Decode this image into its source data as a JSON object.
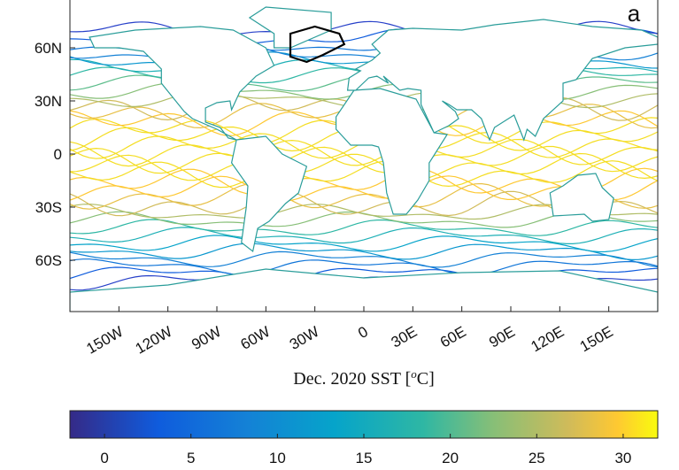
{
  "panel_label": "a",
  "map": {
    "xlim": [
      -180,
      180
    ],
    "ylim": [
      -90,
      90
    ],
    "xticks": [
      {
        "value": -150,
        "label": "150W"
      },
      {
        "value": -120,
        "label": "120W"
      },
      {
        "value": -90,
        "label": "90W"
      },
      {
        "value": -60,
        "label": "60W"
      },
      {
        "value": -30,
        "label": "30W"
      },
      0,
      {
        "value": 30,
        "label": "30E"
      },
      {
        "value": 60,
        "label": "60E"
      },
      {
        "value": 90,
        "label": "90E"
      },
      {
        "value": 120,
        "label": "120E"
      },
      {
        "value": 150,
        "label": "150E"
      }
    ],
    "yticks": [
      {
        "value": 60,
        "label": "60N"
      },
      {
        "value": 30,
        "label": "30N"
      },
      0,
      {
        "value": -30,
        "label": "30S"
      },
      {
        "value": -60,
        "label": "60S"
      }
    ]
  },
  "colorbar": {
    "label": {
      "text": "Dec. 2020 SST [",
      "sup": "o",
      "unit": "C]"
    },
    "lim": [
      -2,
      32
    ],
    "ticks": [
      0,
      5,
      10,
      15,
      20,
      25,
      30
    ]
  }
}
